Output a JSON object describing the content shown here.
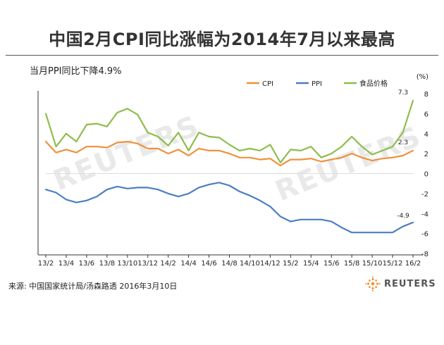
{
  "title": "中国2月CPI同比涨幅为2014年7月以来最高",
  "subtitle": "当月PPI同比下降4.9%",
  "source": "来源: 中国国家统计局/汤森路透  2016年3月10日",
  "logo_text": "REUTERS",
  "watermark_text": "REUTERS",
  "colors": {
    "cpi": "#f0913a",
    "ppi": "#4a7ec4",
    "food": "#8fbd4b",
    "axis": "#333333",
    "grid": "#e6e6e6"
  },
  "chart_data": {
    "type": "line",
    "unit_label": "(%)",
    "ylim": [
      -8,
      8
    ],
    "yticks": [
      8,
      6,
      4,
      2,
      0,
      -2,
      -4,
      -6,
      -8
    ],
    "x_tick_labels": [
      "13/2",
      "13/4",
      "13/6",
      "13/8",
      "13/10",
      "13/12",
      "14/2",
      "14/4",
      "14/6",
      "14/8",
      "14/10",
      "14/12",
      "15/2",
      "15/4",
      "15/6",
      "15/8",
      "15/10",
      "15/12",
      "16/2"
    ],
    "x": [
      "13/2",
      "13/3",
      "13/4",
      "13/5",
      "13/6",
      "13/7",
      "13/8",
      "13/9",
      "13/10",
      "13/11",
      "13/12",
      "14/1",
      "14/2",
      "14/3",
      "14/4",
      "14/5",
      "14/6",
      "14/7",
      "14/8",
      "14/9",
      "14/10",
      "14/11",
      "14/12",
      "15/1",
      "15/2",
      "15/3",
      "15/4",
      "15/5",
      "15/6",
      "15/7",
      "15/8",
      "15/9",
      "15/10",
      "15/11",
      "15/12",
      "16/1",
      "16/2"
    ],
    "series": [
      {
        "name": "CPI",
        "values": [
          3.2,
          2.1,
          2.4,
          2.1,
          2.7,
          2.7,
          2.6,
          3.1,
          3.2,
          3.0,
          2.5,
          2.5,
          2.0,
          2.4,
          1.8,
          2.5,
          2.3,
          2.3,
          2.0,
          1.6,
          1.6,
          1.4,
          1.5,
          0.8,
          1.4,
          1.4,
          1.5,
          1.2,
          1.4,
          1.6,
          2.0,
          1.6,
          1.3,
          1.5,
          1.6,
          1.8,
          2.3
        ]
      },
      {
        "name": "PPI",
        "values": [
          -1.6,
          -1.9,
          -2.6,
          -2.9,
          -2.7,
          -2.3,
          -1.6,
          -1.3,
          -1.5,
          -1.4,
          -1.4,
          -1.6,
          -2.0,
          -2.3,
          -2.0,
          -1.4,
          -1.1,
          -0.9,
          -1.2,
          -1.8,
          -2.2,
          -2.7,
          -3.3,
          -4.3,
          -4.8,
          -4.6,
          -4.6,
          -4.6,
          -4.8,
          -5.4,
          -5.9,
          -5.9,
          -5.9,
          -5.9,
          -5.9,
          -5.3,
          -4.9
        ]
      },
      {
        "name": "食品价格",
        "values": [
          6.0,
          2.7,
          4.0,
          3.2,
          4.9,
          5.0,
          4.7,
          6.1,
          6.5,
          5.9,
          4.1,
          3.7,
          2.8,
          4.1,
          2.3,
          4.1,
          3.7,
          3.6,
          2.9,
          2.3,
          2.5,
          2.3,
          2.9,
          1.1,
          2.4,
          2.3,
          2.7,
          1.6,
          2.0,
          2.7,
          3.7,
          2.7,
          1.9,
          2.3,
          2.7,
          4.1,
          7.3
        ]
      }
    ],
    "annotations": [
      {
        "series": "食品价格",
        "x": "16/2",
        "label": "7.3"
      },
      {
        "series": "CPI",
        "x": "16/2",
        "label": "2.3"
      },
      {
        "series": "PPI",
        "x": "16/2",
        "label": "-4.9"
      }
    ],
    "legend_position": "top"
  }
}
